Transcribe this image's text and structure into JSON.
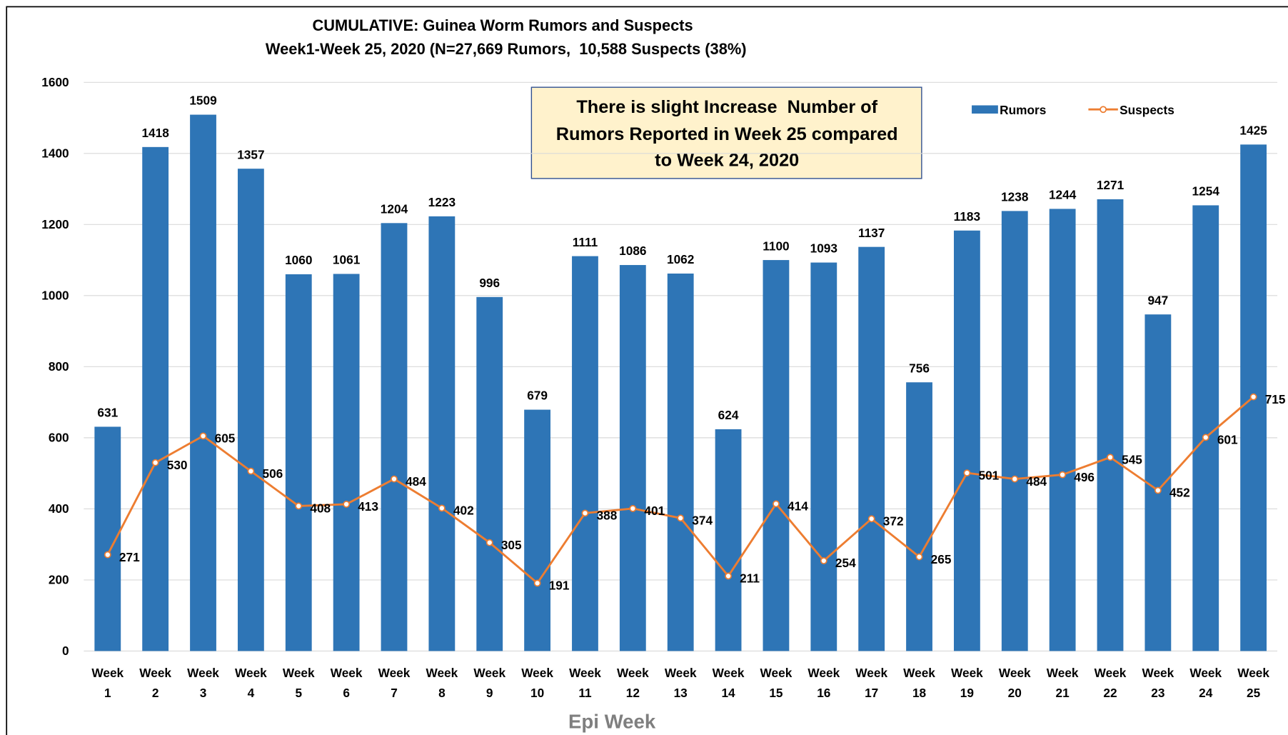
{
  "chart_data": {
    "type": "bar_line",
    "title": "CUMULATIVE: Guinea Worm Rumors and Suspects",
    "subtitle": "Week1-Week 25, 2020 (N=27,669 Rumors,  10,588 Suspects (38%)",
    "annotation": [
      "There is slight Increase  Number of",
      "Rumors Reported in Week 25 compared",
      "to Week 24, 2020"
    ],
    "x_label": "Epi Week",
    "categories": [
      "Week 1",
      "Week 2",
      "Week 3",
      "Week 4",
      "Week 5",
      "Week 6",
      "Week 7",
      "Week 8",
      "Week 9",
      "Week 10",
      "Week 11",
      "Week 12",
      "Week 13",
      "Week 14",
      "Week 15",
      "Week 16",
      "Week 17",
      "Week 18",
      "Week 19",
      "Week 20",
      "Week 21",
      "Week 22",
      "Week 23",
      "Week 24",
      "Week 25"
    ],
    "series": [
      {
        "name": "Rumors",
        "type": "bar",
        "color": "#2e75b6",
        "values": [
          631,
          1418,
          1509,
          1357,
          1060,
          1061,
          1204,
          1223,
          996,
          679,
          1111,
          1086,
          1062,
          624,
          1100,
          1093,
          1137,
          756,
          1183,
          1238,
          1244,
          1271,
          947,
          1254,
          1425
        ]
      },
      {
        "name": "Suspects",
        "type": "line",
        "color": "#ed7d31",
        "values": [
          271,
          530,
          605,
          506,
          408,
          413,
          484,
          402,
          305,
          191,
          388,
          401,
          374,
          211,
          414,
          254,
          372,
          265,
          501,
          484,
          496,
          545,
          452,
          601,
          715
        ]
      }
    ],
    "ylim": [
      0,
      1600
    ],
    "yticks": [
      0,
      200,
      400,
      600,
      800,
      1000,
      1200,
      1400,
      1600
    ],
    "grid": true,
    "legend": "top-right"
  }
}
